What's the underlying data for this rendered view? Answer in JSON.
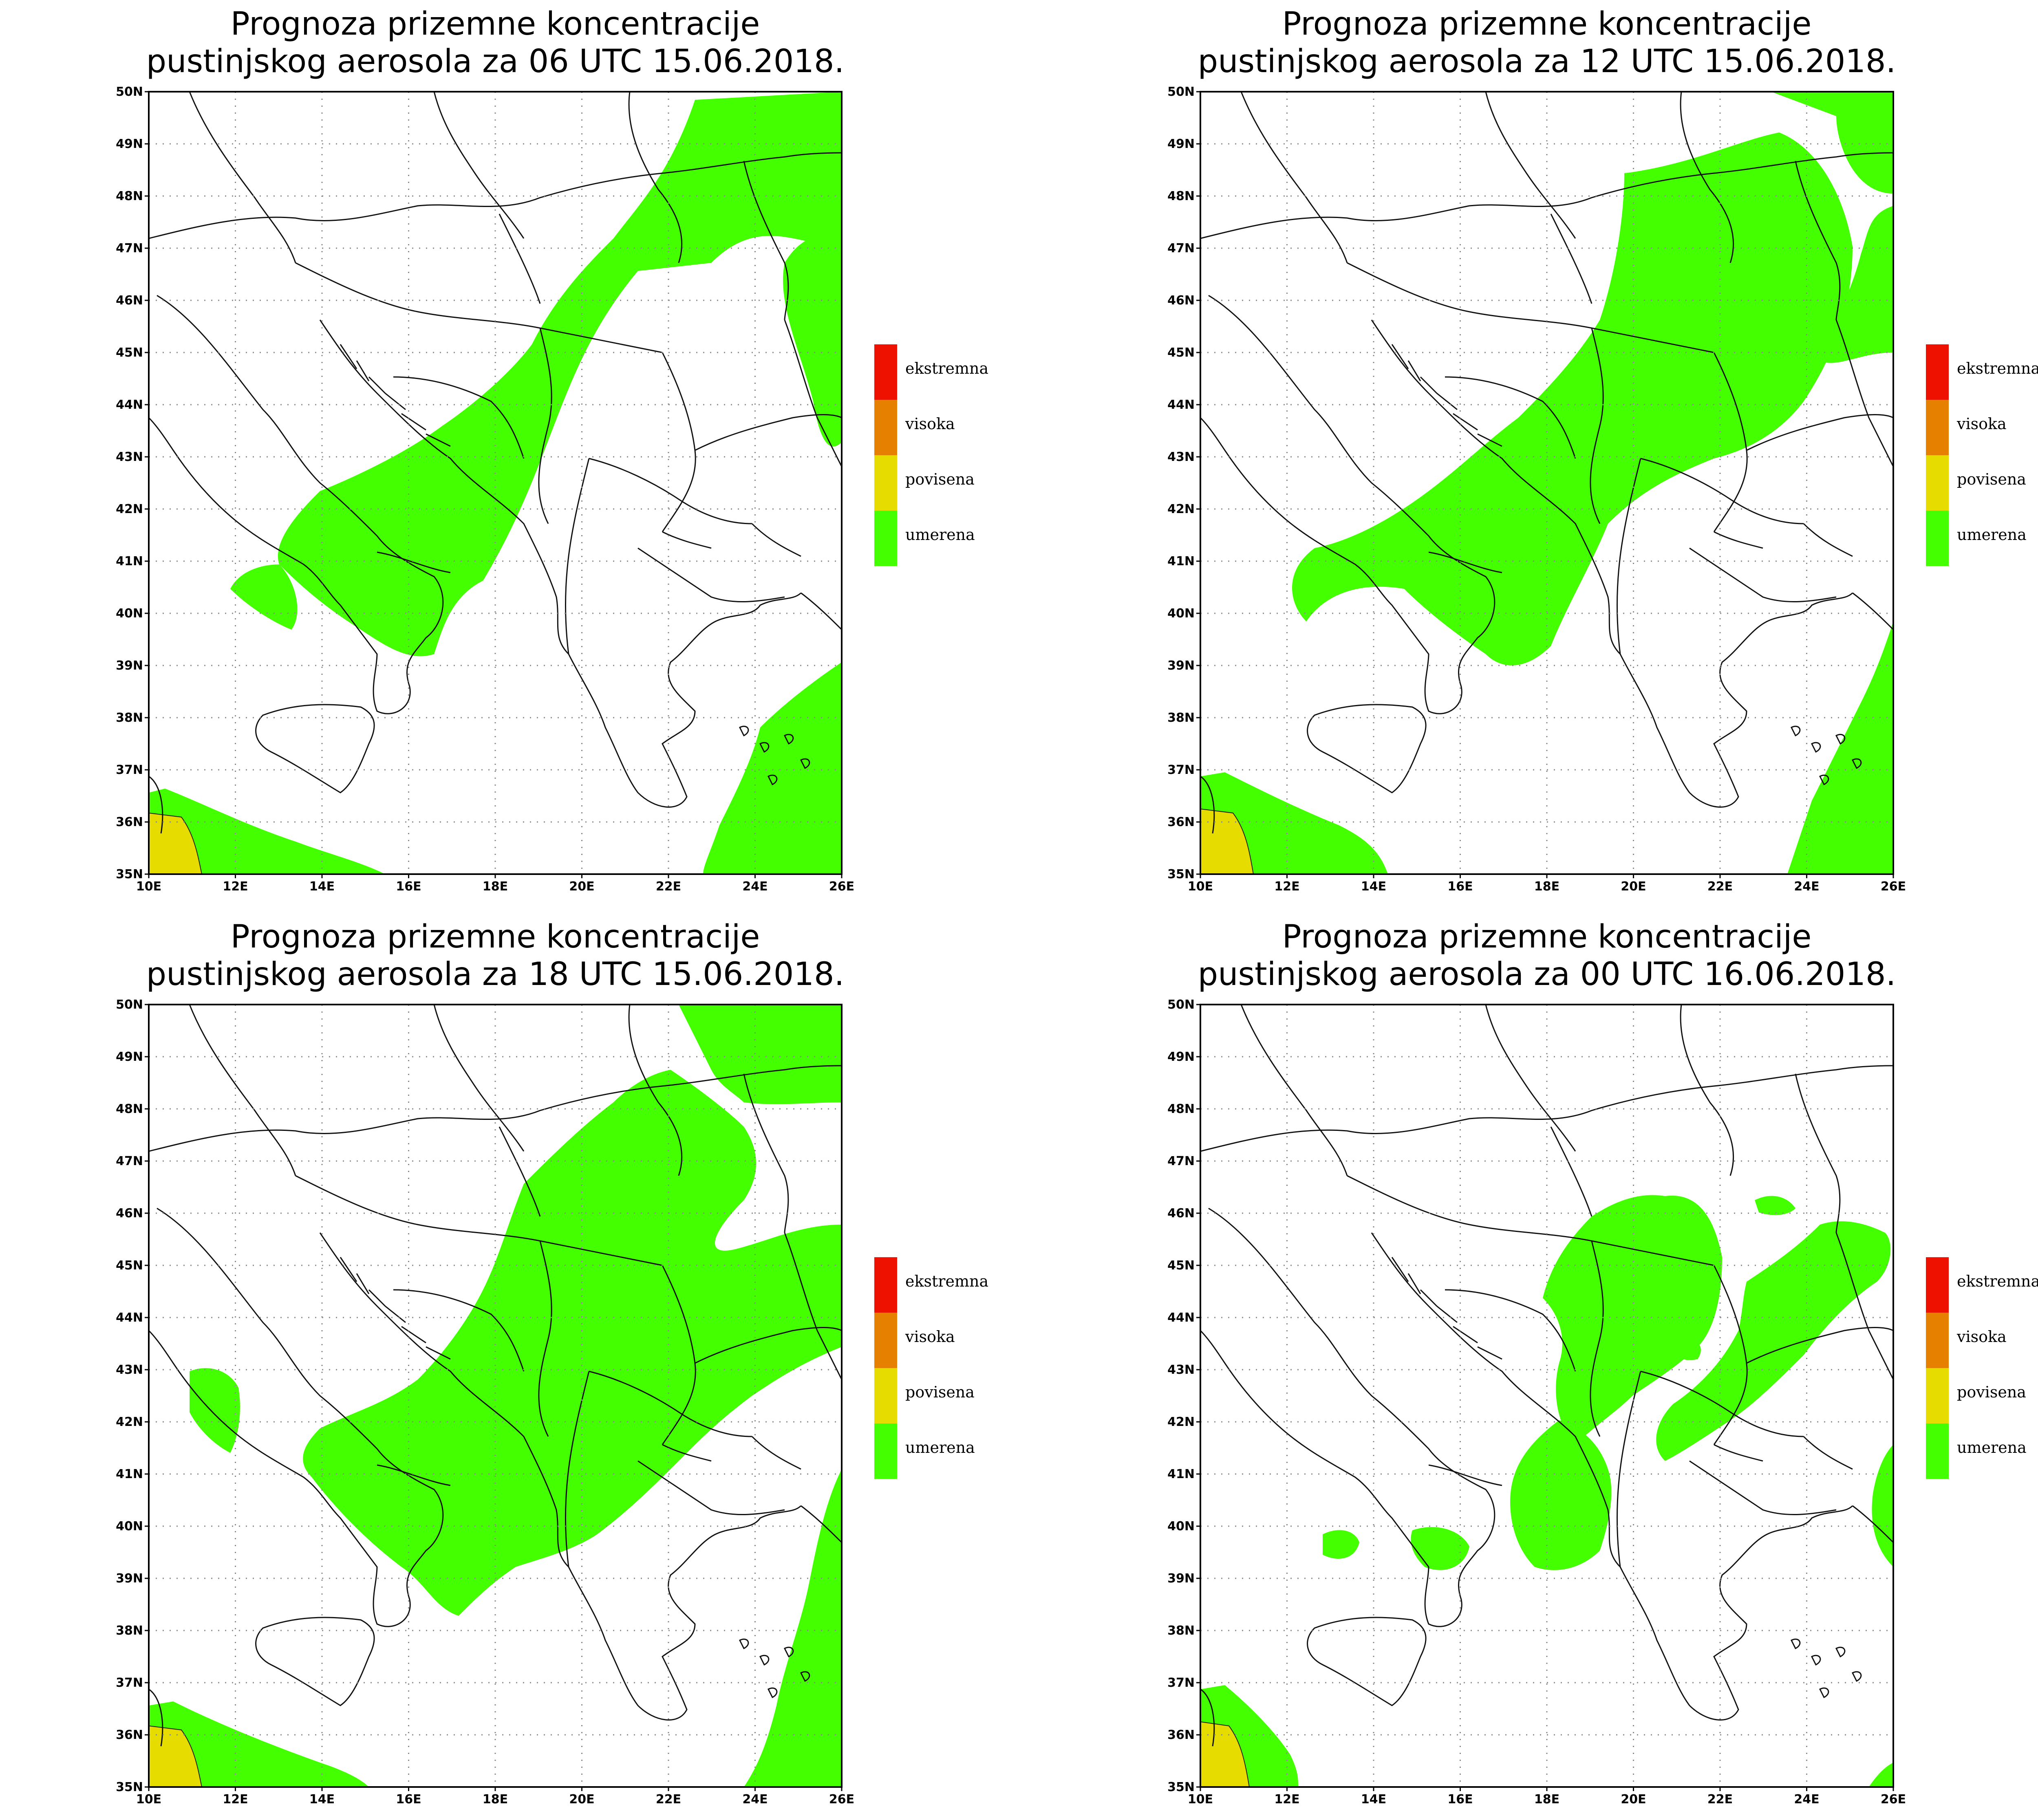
{
  "colors": {
    "umerena": "#44ff00",
    "povisena": "#e6dc00",
    "visoka": "#e68000",
    "ekstremna": "#ee1100",
    "ink": "#000000"
  },
  "legend": [
    {
      "key": "ekstremna",
      "label": "ekstremna",
      "color": "#ee1100"
    },
    {
      "key": "visoka",
      "label": "visoka",
      "color": "#e68000"
    },
    {
      "key": "povisena",
      "label": "povisena",
      "color": "#e6dc00"
    },
    {
      "key": "umerena",
      "label": "umerena",
      "color": "#44ff00"
    }
  ],
  "axes": {
    "lon_labels": [
      "10E",
      "12E",
      "14E",
      "16E",
      "18E",
      "20E",
      "22E",
      "24E",
      "26E"
    ],
    "lat_labels": [
      "35N",
      "36N",
      "37N",
      "38N",
      "39N",
      "40N",
      "41N",
      "42N",
      "43N",
      "44N",
      "45N",
      "46N",
      "47N",
      "48N",
      "49N",
      "50N"
    ],
    "lon_range": [
      10,
      26
    ],
    "lat_range": [
      35,
      50
    ],
    "grid": true
  },
  "panels": [
    {
      "title_line1": "Prognoza prizemne koncentracije",
      "title_line2": "pustinjskog aerosola za 06 UTC 15.06.2018.",
      "hour": "06 UTC",
      "date": "15.06.2018."
    },
    {
      "title_line1": "Prognoza prizemne koncentracije",
      "title_line2": "pustinjskog aerosola za 12 UTC 15.06.2018.",
      "hour": "12 UTC",
      "date": "15.06.2018."
    },
    {
      "title_line1": "Prognoza prizemne koncentracije",
      "title_line2": "pustinjskog aerosola za 18 UTC 15.06.2018.",
      "hour": "18 UTC",
      "date": "15.06.2018."
    },
    {
      "title_line1": "Prognoza prizemne koncentracije",
      "title_line2": "pustinjskog aerosola za 00 UTC 16.06.2018.",
      "hour": "00 UTC",
      "date": "16.06.2018."
    }
  ]
}
